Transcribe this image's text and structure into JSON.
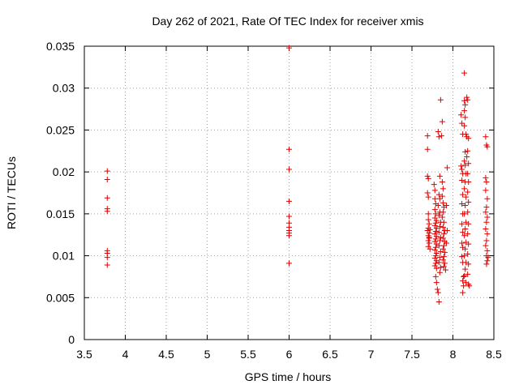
{
  "chart_data": {
    "type": "scatter",
    "title": "Day 262 of 2021, Rate Of TEC Index for receiver xmis",
    "xlabel": "GPS time / hours",
    "ylabel": "ROTI / TECUs",
    "xlim": [
      3.5,
      8.5
    ],
    "ylim": [
      0,
      0.035
    ],
    "x_ticks": [
      "3.5",
      "4",
      "4.5",
      "5",
      "5.5",
      "6",
      "6.5",
      "7",
      "7.5",
      "8",
      "8.5"
    ],
    "y_ticks": [
      "0",
      "0.005",
      "0.01",
      "0.015",
      "0.02",
      "0.025",
      "0.03",
      "0.035"
    ],
    "grid": true,
    "marker": "+",
    "marker_color": "#e00000",
    "series": [
      {
        "name": "ROTI",
        "points": [
          [
            3.78,
            0.0201
          ],
          [
            3.78,
            0.0191
          ],
          [
            3.78,
            0.0169
          ],
          [
            3.78,
            0.0156
          ],
          [
            3.78,
            0.0153
          ],
          [
            3.78,
            0.0106
          ],
          [
            3.78,
            0.0103
          ],
          [
            3.78,
            0.0098
          ],
          [
            3.78,
            0.0089
          ],
          [
            6.0,
            0.0348
          ],
          [
            6.0,
            0.0227
          ],
          [
            6.0,
            0.0203
          ],
          [
            6.0,
            0.0165
          ],
          [
            6.0,
            0.0147
          ],
          [
            6.0,
            0.0139
          ],
          [
            6.0,
            0.0134
          ],
          [
            6.0,
            0.013
          ],
          [
            6.0,
            0.0127
          ],
          [
            6.0,
            0.0124
          ],
          [
            6.0,
            0.0091
          ],
          [
            7.69,
            0.0243
          ],
          [
            7.69,
            0.0227
          ],
          [
            7.69,
            0.0195
          ],
          [
            7.7,
            0.0192
          ],
          [
            7.69,
            0.0175
          ],
          [
            7.7,
            0.017
          ],
          [
            7.7,
            0.015
          ],
          [
            7.7,
            0.0143
          ],
          [
            7.71,
            0.0138
          ],
          [
            7.7,
            0.0133
          ],
          [
            7.69,
            0.013
          ],
          [
            7.71,
            0.0127
          ],
          [
            7.7,
            0.0124
          ],
          [
            7.71,
            0.0121
          ],
          [
            7.7,
            0.0118
          ],
          [
            7.71,
            0.0115
          ],
          [
            7.7,
            0.0111
          ],
          [
            7.72,
            0.0108
          ],
          [
            7.71,
            0.0122
          ],
          [
            7.72,
            0.0131
          ],
          [
            7.77,
            0.0185
          ],
          [
            7.78,
            0.0178
          ],
          [
            7.78,
            0.0168
          ],
          [
            7.79,
            0.0162
          ],
          [
            7.78,
            0.0155
          ],
          [
            7.79,
            0.015
          ],
          [
            7.78,
            0.0145
          ],
          [
            7.8,
            0.0142
          ],
          [
            7.79,
            0.0139
          ],
          [
            7.78,
            0.0136
          ],
          [
            7.8,
            0.0133
          ],
          [
            7.79,
            0.0129
          ],
          [
            7.78,
            0.0126
          ],
          [
            7.8,
            0.0123
          ],
          [
            7.79,
            0.012
          ],
          [
            7.78,
            0.0117
          ],
          [
            7.8,
            0.0114
          ],
          [
            7.79,
            0.011
          ],
          [
            7.78,
            0.0107
          ],
          [
            7.8,
            0.0103
          ],
          [
            7.79,
            0.01
          ],
          [
            7.78,
            0.0097
          ],
          [
            7.8,
            0.0094
          ],
          [
            7.79,
            0.0091
          ],
          [
            7.78,
            0.0088
          ],
          [
            7.8,
            0.0085
          ],
          [
            7.79,
            0.0075
          ],
          [
            7.8,
            0.0068
          ],
          [
            7.81,
            0.006
          ],
          [
            7.82,
            0.0056
          ],
          [
            7.83,
            0.0045
          ],
          [
            7.82,
            0.0248
          ],
          [
            7.83,
            0.0242
          ],
          [
            7.84,
            0.0195
          ],
          [
            7.83,
            0.0173
          ],
          [
            7.84,
            0.0168
          ],
          [
            7.82,
            0.016
          ],
          [
            7.84,
            0.0152
          ],
          [
            7.83,
            0.0148
          ],
          [
            7.85,
            0.014
          ],
          [
            7.84,
            0.0135
          ],
          [
            7.83,
            0.0128
          ],
          [
            7.85,
            0.0122
          ],
          [
            7.84,
            0.0118
          ],
          [
            7.83,
            0.0112
          ],
          [
            7.85,
            0.0105
          ],
          [
            7.84,
            0.0098
          ],
          [
            7.83,
            0.0092
          ],
          [
            7.85,
            0.0086
          ],
          [
            7.84,
            0.008
          ],
          [
            7.85,
            0.0286
          ],
          [
            7.87,
            0.026
          ],
          [
            7.86,
            0.0243
          ],
          [
            7.87,
            0.0188
          ],
          [
            7.88,
            0.018
          ],
          [
            7.87,
            0.0171
          ],
          [
            7.88,
            0.0163
          ],
          [
            7.89,
            0.0158
          ],
          [
            7.88,
            0.0152
          ],
          [
            7.87,
            0.0146
          ],
          [
            7.89,
            0.014
          ],
          [
            7.88,
            0.0134
          ],
          [
            7.9,
            0.013
          ],
          [
            7.89,
            0.0126
          ],
          [
            7.88,
            0.0121
          ],
          [
            7.9,
            0.0117
          ],
          [
            7.89,
            0.0112
          ],
          [
            7.88,
            0.0108
          ],
          [
            7.9,
            0.0104
          ],
          [
            7.89,
            0.0099
          ],
          [
            7.88,
            0.0095
          ],
          [
            7.9,
            0.0091
          ],
          [
            7.89,
            0.0087
          ],
          [
            7.91,
            0.0083
          ],
          [
            7.93,
            0.0205
          ],
          [
            7.92,
            0.016
          ],
          [
            7.93,
            0.013
          ],
          [
            7.92,
            0.0115
          ],
          [
            8.1,
            0.0268
          ],
          [
            8.11,
            0.0258
          ],
          [
            8.12,
            0.0245
          ],
          [
            8.1,
            0.0207
          ],
          [
            8.11,
            0.0203
          ],
          [
            8.12,
            0.0198
          ],
          [
            8.11,
            0.019
          ],
          [
            8.12,
            0.0173
          ],
          [
            8.11,
            0.0162
          ],
          [
            8.12,
            0.015
          ],
          [
            8.11,
            0.0138
          ],
          [
            8.12,
            0.0128
          ],
          [
            8.11,
            0.0115
          ],
          [
            8.12,
            0.011
          ],
          [
            8.11,
            0.0099
          ],
          [
            8.12,
            0.0092
          ],
          [
            8.13,
            0.0075
          ],
          [
            8.12,
            0.007
          ],
          [
            8.13,
            0.0064
          ],
          [
            8.12,
            0.0056
          ],
          [
            8.14,
            0.0318
          ],
          [
            8.14,
            0.0285
          ],
          [
            8.15,
            0.028
          ],
          [
            8.14,
            0.0273
          ],
          [
            8.15,
            0.0265
          ],
          [
            8.14,
            0.0255
          ],
          [
            8.16,
            0.0245
          ],
          [
            8.15,
            0.0224
          ],
          [
            8.14,
            0.0213
          ],
          [
            8.15,
            0.0208
          ],
          [
            8.16,
            0.0198
          ],
          [
            8.15,
            0.0188
          ],
          [
            8.14,
            0.018
          ],
          [
            8.16,
            0.017
          ],
          [
            8.15,
            0.016
          ],
          [
            8.14,
            0.015
          ],
          [
            8.16,
            0.014
          ],
          [
            8.15,
            0.0132
          ],
          [
            8.14,
            0.0124
          ],
          [
            8.16,
            0.0116
          ],
          [
            8.15,
            0.0108
          ],
          [
            8.14,
            0.01
          ],
          [
            8.16,
            0.0092
          ],
          [
            8.15,
            0.0084
          ],
          [
            8.14,
            0.0076
          ],
          [
            8.16,
            0.0068
          ],
          [
            8.17,
            0.0289
          ],
          [
            8.18,
            0.0286
          ],
          [
            8.17,
            0.0242
          ],
          [
            8.19,
            0.024
          ],
          [
            8.18,
            0.0225
          ],
          [
            8.17,
            0.0218
          ],
          [
            8.19,
            0.021
          ],
          [
            8.18,
            0.0198
          ],
          [
            8.19,
            0.0188
          ],
          [
            8.18,
            0.0176
          ],
          [
            8.19,
            0.0164
          ],
          [
            8.18,
            0.0152
          ],
          [
            8.19,
            0.0138
          ],
          [
            8.18,
            0.0126
          ],
          [
            8.19,
            0.0114
          ],
          [
            8.18,
            0.0102
          ],
          [
            8.19,
            0.009
          ],
          [
            8.18,
            0.0078
          ],
          [
            8.19,
            0.0066
          ],
          [
            8.2,
            0.0064
          ],
          [
            8.4,
            0.0242
          ],
          [
            8.41,
            0.0232
          ],
          [
            8.42,
            0.023
          ],
          [
            8.4,
            0.0193
          ],
          [
            8.41,
            0.0188
          ],
          [
            8.4,
            0.0178
          ],
          [
            8.42,
            0.0168
          ],
          [
            8.41,
            0.0158
          ],
          [
            8.4,
            0.0152
          ],
          [
            8.42,
            0.0146
          ],
          [
            8.41,
            0.014
          ],
          [
            8.4,
            0.0132
          ],
          [
            8.42,
            0.0126
          ],
          [
            8.41,
            0.0118
          ],
          [
            8.4,
            0.0112
          ],
          [
            8.42,
            0.0106
          ],
          [
            8.41,
            0.01
          ],
          [
            8.43,
            0.0098
          ],
          [
            8.42,
            0.0094
          ],
          [
            8.41,
            0.009
          ]
        ]
      }
    ]
  }
}
